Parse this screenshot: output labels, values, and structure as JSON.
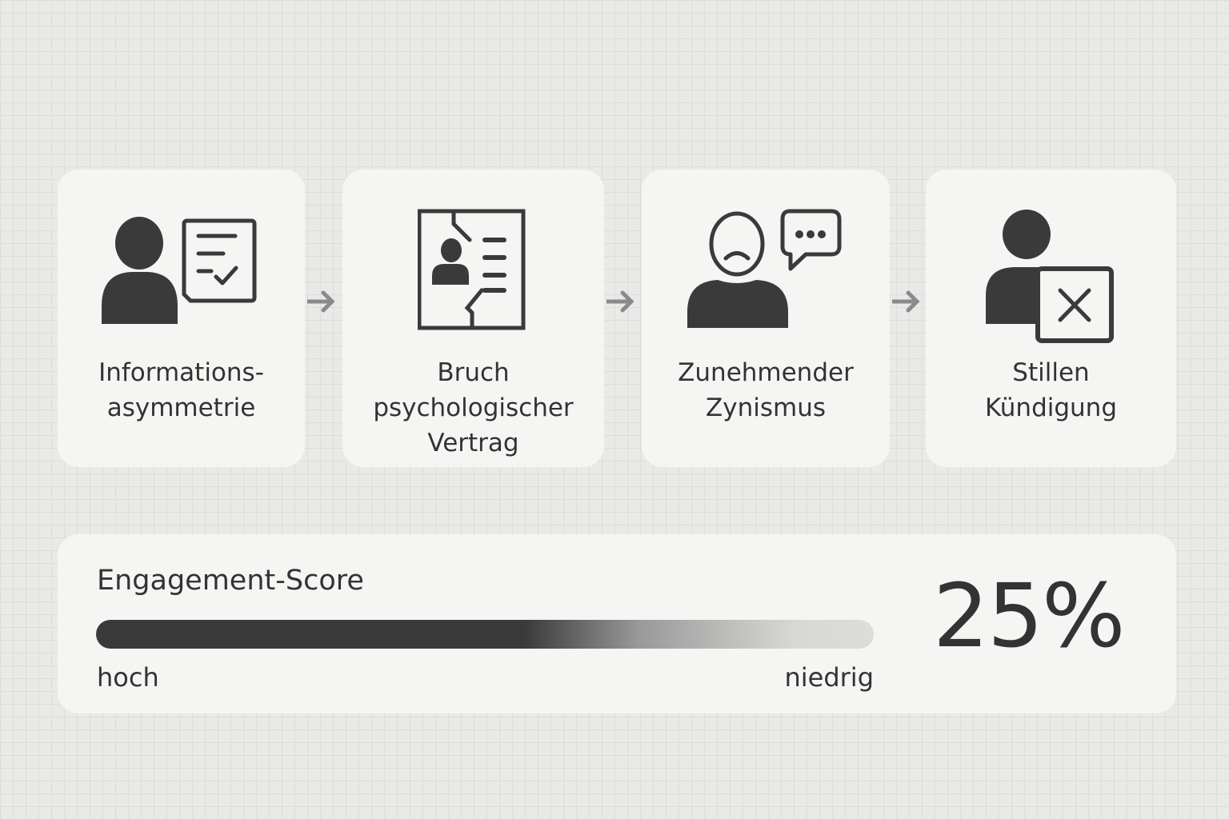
{
  "steps": [
    {
      "lines": [
        "Informations-",
        "asymmetrie"
      ],
      "icon": "person-document-check-icon"
    },
    {
      "lines": [
        "Bruch",
        "psychologischer",
        "Vertrag"
      ],
      "icon": "torn-contract-icon"
    },
    {
      "lines": [
        "Zunehmender",
        "Zynismus"
      ],
      "icon": "sad-person-speech-icon"
    },
    {
      "lines": [
        "Stillen",
        "Kündigung"
      ],
      "icon": "person-cancel-icon"
    }
  ],
  "engagement": {
    "title": "Engagement-Score",
    "value_percent": 25,
    "value_label": "25%",
    "left_label": "hoch",
    "right_label": "niedrig"
  },
  "colors": {
    "icon": "#3a3a3a",
    "card": "#f5f5f3",
    "background": "#e9e9e7"
  }
}
